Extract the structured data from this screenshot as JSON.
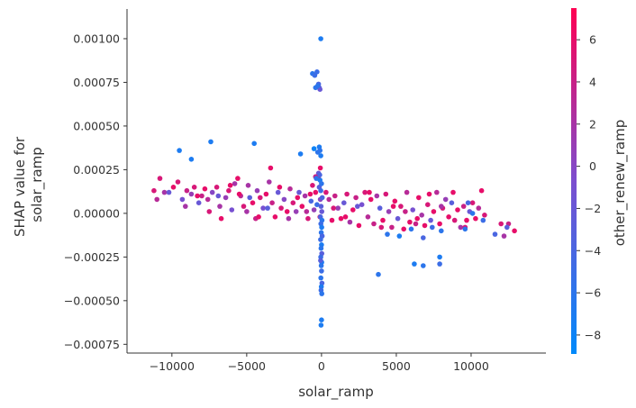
{
  "chart_data": {
    "type": "scatter",
    "title": "",
    "xlabel": "solar_ramp",
    "ylabel_lines": [
      "SHAP value for",
      "solar_ramp"
    ],
    "colorbar_label": "other_renew_ramp",
    "xlim": [
      -13000,
      15000
    ],
    "ylim": [
      -0.0008,
      0.00117
    ],
    "x_ticks": [
      -10000,
      -5000,
      0,
      5000,
      10000
    ],
    "x_tick_labels": [
      "−10000",
      "−5000",
      "0",
      "5000",
      "10000"
    ],
    "y_ticks": [
      -0.00075,
      -0.0005,
      -0.00025,
      0,
      0.00025,
      0.0005,
      0.00075,
      0.001
    ],
    "y_tick_labels": [
      "−0.00075",
      "−0.00050",
      "−0.00025",
      "0.00000",
      "0.00025",
      "0.00050",
      "0.00075",
      "0.00100"
    ],
    "colorbar": {
      "range": [
        -8.9,
        7.5
      ],
      "ticks": [
        -8,
        -6,
        -4,
        -2,
        0,
        2,
        4,
        6
      ],
      "tick_labels": [
        "−8",
        "−6",
        "−4",
        "−2",
        "0",
        "2",
        "4",
        "6"
      ],
      "color_low": "#008afb",
      "color_mid": "#7c4ecf",
      "color_high": "#ff0052"
    },
    "grid": false,
    "points": [
      [
        -11200,
        0.00013,
        5
      ],
      [
        -10800,
        0.0002,
        5
      ],
      [
        -10500,
        0.00012,
        2
      ],
      [
        -10200,
        0.00012,
        -2
      ],
      [
        -9600,
        0.00018,
        5
      ],
      [
        -9300,
        8e-05,
        -1
      ],
      [
        -9000,
        0.00013,
        4
      ],
      [
        -8700,
        0.00011,
        1
      ],
      [
        -8500,
        0.00015,
        5
      ],
      [
        -8200,
        6e-05,
        -2
      ],
      [
        -8000,
        0.0001,
        4
      ],
      [
        -7800,
        0.00014,
        6
      ],
      [
        -7600,
        8e-05,
        3
      ],
      [
        -7300,
        0.00012,
        0
      ],
      [
        -7000,
        0.00015,
        5
      ],
      [
        -6800,
        4e-05,
        2
      ],
      [
        -6700,
        -3e-05,
        6
      ],
      [
        -6400,
        9e-05,
        1
      ],
      [
        -6200,
        0.00013,
        5
      ],
      [
        -6000,
        2e-05,
        -1
      ],
      [
        -5800,
        0.00017,
        2
      ],
      [
        -5600,
        0.0002,
        6
      ],
      [
        -5400,
        0.0001,
        3
      ],
      [
        -5200,
        4e-05,
        5
      ],
      [
        -5000,
        1e-05,
        2
      ],
      [
        -4800,
        9e-05,
        -3
      ],
      [
        -4600,
        6e-05,
        6
      ],
      [
        -4400,
        -3e-05,
        4
      ],
      [
        -4300,
        0.00013,
        1
      ],
      [
        -4100,
        9e-05,
        5
      ],
      [
        -3900,
        3e-05,
        -1
      ],
      [
        -3700,
        0.00011,
        6
      ],
      [
        -3500,
        0.00018,
        2
      ],
      [
        -3300,
        6e-05,
        4
      ],
      [
        -3100,
        -2e-05,
        6
      ],
      [
        -2900,
        0.00012,
        -2
      ],
      [
        -2700,
        3e-05,
        5
      ],
      [
        -2500,
        8e-05,
        0
      ],
      [
        -2300,
        1e-05,
        6
      ],
      [
        -2100,
        0.00014,
        3
      ],
      [
        -1900,
        6e-05,
        5
      ],
      [
        -1700,
        1e-05,
        1
      ],
      [
        -1500,
        0.00012,
        -2
      ],
      [
        -1300,
        4e-05,
        6
      ],
      [
        -1100,
        0.0001,
        2
      ],
      [
        -900,
        -3e-05,
        5
      ],
      [
        -700,
        7e-05,
        -4
      ],
      [
        -600,
        0.00016,
        5
      ],
      [
        -500,
        2e-05,
        1
      ],
      [
        -400,
        0.00012,
        6
      ],
      [
        -300,
        5e-05,
        -5
      ],
      [
        -200,
        0.0002,
        4
      ],
      [
        -150,
        0.00015,
        -3
      ],
      [
        -100,
        -2e-05,
        6
      ],
      [
        -80,
        8e-05,
        0
      ],
      [
        -11000,
        8e-05,
        3
      ],
      [
        -9900,
        0.00015,
        6
      ],
      [
        -9100,
        4e-05,
        2
      ],
      [
        -8300,
        0.0001,
        6
      ],
      [
        -7500,
        1e-05,
        5
      ],
      [
        -6900,
        0.0001,
        -2
      ],
      [
        -6100,
        0.00016,
        6
      ],
      [
        -5500,
        0.00011,
        6
      ],
      [
        -4900,
        0.00016,
        2
      ],
      [
        -4200,
        -2e-05,
        6
      ],
      [
        -3600,
        3e-05,
        -3
      ],
      [
        -2800,
        0.00015,
        6
      ],
      [
        -2200,
        -3e-05,
        2
      ],
      [
        -1600,
        9e-05,
        6
      ],
      [
        -1000,
        1e-05,
        3
      ],
      [
        -750,
        0.00011,
        6
      ],
      [
        -9500,
        0.00036,
        -7
      ],
      [
        -8700,
        0.00031,
        -7
      ],
      [
        -7400,
        0.00041,
        -7
      ],
      [
        -4500,
        0.0004,
        -7
      ],
      [
        -3400,
        0.00026,
        6
      ],
      [
        -1400,
        0.00034,
        -7
      ],
      [
        -500,
        0.00037,
        -8
      ],
      [
        -250,
        0.00035,
        -6
      ],
      [
        -150,
        0.00038,
        -7
      ],
      [
        -100,
        0.00036,
        -6
      ],
      [
        -50,
        0.00033,
        -7
      ],
      [
        -80,
        0.00026,
        6
      ],
      [
        -200,
        0.00023,
        -2
      ],
      [
        -120,
        0.00022,
        -4
      ],
      [
        -400,
        0.00021,
        4
      ],
      [
        -350,
        0.0002,
        -6
      ],
      [
        -600,
        0.0008,
        -6
      ],
      [
        -450,
        0.00079,
        -5
      ],
      [
        -300,
        0.00081,
        -5
      ],
      [
        -200,
        0.00074,
        -4
      ],
      [
        -150,
        0.00072,
        -3
      ],
      [
        -100,
        0.00071,
        -2
      ],
      [
        -250,
        0.00073,
        -6
      ],
      [
        -400,
        0.00072,
        -6
      ],
      [
        -50,
        0.001,
        -7
      ],
      [
        -100,
        0.00019,
        -7
      ],
      [
        0,
        0.00017,
        -6
      ],
      [
        -50,
        0.00013,
        -5
      ],
      [
        50,
        9e-05,
        -4
      ],
      [
        -30,
        4e-05,
        -3
      ],
      [
        20,
        1e-05,
        -2
      ],
      [
        -70,
        -2e-05,
        -4
      ],
      [
        30,
        -4e-05,
        -6
      ],
      [
        -40,
        -6e-05,
        -5
      ],
      [
        10,
        -8e-05,
        -7
      ],
      [
        -20,
        -0.00011,
        -6
      ],
      [
        40,
        -0.00013,
        -4
      ],
      [
        -60,
        -0.00015,
        -5
      ],
      [
        0,
        -0.00018,
        -7
      ],
      [
        -30,
        -0.0002,
        -6
      ],
      [
        20,
        -0.00023,
        -3
      ],
      [
        -50,
        -0.00025,
        -5
      ],
      [
        10,
        -0.00028,
        -7
      ],
      [
        -20,
        -0.0003,
        -6
      ],
      [
        0,
        -0.00033,
        -5
      ],
      [
        -40,
        -0.00037,
        -6
      ],
      [
        30,
        -0.0004,
        -4
      ],
      [
        -10,
        -0.00042,
        -7
      ],
      [
        -30,
        -0.00044,
        -5
      ],
      [
        0,
        -0.00061,
        -7
      ],
      [
        -30,
        -0.00064,
        -7
      ],
      [
        20,
        -0.00046,
        -6
      ],
      [
        -60,
        -0.00027,
        -3
      ],
      [
        300,
        0.00012,
        5
      ],
      [
        500,
        8e-05,
        3
      ],
      [
        700,
        -4e-05,
        6
      ],
      [
        900,
        0.0001,
        4
      ],
      [
        1100,
        3e-05,
        1
      ],
      [
        1300,
        -3e-05,
        6
      ],
      [
        1500,
        6e-05,
        -2
      ],
      [
        1700,
        0.00011,
        5
      ],
      [
        1900,
        -5e-05,
        2
      ],
      [
        2100,
        2e-05,
        6
      ],
      [
        2300,
        9e-05,
        4
      ],
      [
        2500,
        -7e-05,
        6
      ],
      [
        2700,
        5e-05,
        -1
      ],
      [
        2900,
        0.00012,
        5
      ],
      [
        3100,
        -2e-05,
        3
      ],
      [
        3300,
        8e-05,
        6
      ],
      [
        3500,
        -6e-05,
        4
      ],
      [
        3700,
        0.0001,
        2
      ],
      [
        3900,
        3e-05,
        -3
      ],
      [
        4100,
        -4e-05,
        6
      ],
      [
        4300,
        0.00011,
        5
      ],
      [
        4500,
        1e-05,
        1
      ],
      [
        4700,
        -8e-05,
        4
      ],
      [
        4900,
        7e-05,
        6
      ],
      [
        5100,
        -3e-05,
        -2
      ],
      [
        5300,
        4e-05,
        5
      ],
      [
        5500,
        -9e-05,
        6
      ],
      [
        5700,
        0.00012,
        3
      ],
      [
        5900,
        -5e-05,
        6
      ],
      [
        6100,
        2e-05,
        -1
      ],
      [
        6300,
        -6e-05,
        4
      ],
      [
        6500,
        9e-05,
        6
      ],
      [
        6700,
        -1e-05,
        2
      ],
      [
        6900,
        -7e-05,
        6
      ],
      [
        7100,
        5e-05,
        5
      ],
      [
        7300,
        -4e-05,
        -2
      ],
      [
        7500,
        1e-05,
        6
      ],
      [
        7700,
        0.00012,
        3
      ],
      [
        7900,
        -6e-05,
        6
      ],
      [
        8100,
        3e-05,
        5
      ],
      [
        8300,
        8e-05,
        1
      ],
      [
        8500,
        -2e-05,
        6
      ],
      [
        8700,
        6e-05,
        -3
      ],
      [
        8900,
        -4e-05,
        5
      ],
      [
        9100,
        2e-05,
        6
      ],
      [
        9300,
        -8e-05,
        2
      ],
      [
        9500,
        4e-05,
        4
      ],
      [
        9700,
        -4e-05,
        6
      ],
      [
        9900,
        1e-05,
        -2
      ],
      [
        10100,
        6e-05,
        5
      ],
      [
        10300,
        -3e-05,
        6
      ],
      [
        10500,
        3e-05,
        3
      ],
      [
        10700,
        0.00013,
        6
      ],
      [
        10900,
        -1e-05,
        5
      ],
      [
        11600,
        -0.00012,
        -4
      ],
      [
        12000,
        -6e-05,
        5
      ],
      [
        12200,
        -0.00013,
        2
      ],
      [
        12500,
        -6e-05,
        4
      ],
      [
        12900,
        -0.0001,
        6
      ],
      [
        800,
        3e-05,
        5
      ],
      [
        1600,
        -2e-05,
        6
      ],
      [
        2400,
        4e-05,
        -2
      ],
      [
        3200,
        0.00012,
        6
      ],
      [
        4000,
        -8e-05,
        5
      ],
      [
        4800,
        4e-05,
        6
      ],
      [
        5600,
        1e-05,
        4
      ],
      [
        6400,
        -3e-05,
        6
      ],
      [
        7200,
        0.00011,
        6
      ],
      [
        8000,
        4e-05,
        2
      ],
      [
        8800,
        0.00012,
        6
      ],
      [
        9600,
        -8e-05,
        5
      ],
      [
        4400,
        -0.00012,
        -6
      ],
      [
        5200,
        -0.00013,
        -7
      ],
      [
        6000,
        -9e-05,
        -6
      ],
      [
        7400,
        -8e-05,
        -5
      ],
      [
        6800,
        -0.00014,
        -4
      ],
      [
        8000,
        -0.0001,
        -6
      ],
      [
        6200,
        -0.00029,
        -7
      ],
      [
        6800,
        -0.0003,
        -6
      ],
      [
        7900,
        -0.00025,
        -7
      ],
      [
        7900,
        -0.00029,
        -5
      ],
      [
        3800,
        -0.00035,
        -6
      ],
      [
        9600,
        -9e-05,
        -6
      ],
      [
        10100,
        0.0,
        -6
      ],
      [
        9800,
        6e-05,
        -4
      ],
      [
        10800,
        -4e-05,
        -5
      ],
      [
        12400,
        -8e-05,
        -3
      ]
    ]
  }
}
